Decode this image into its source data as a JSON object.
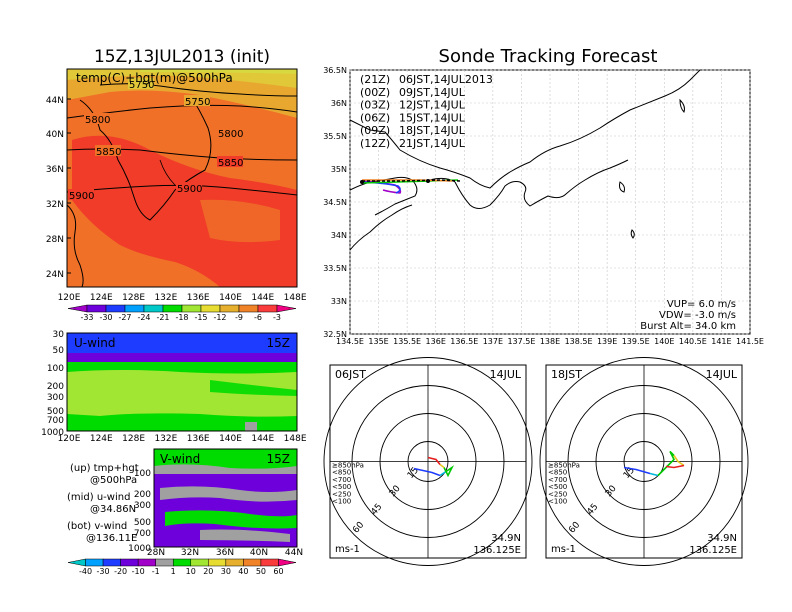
{
  "left_title": "15Z,13JUL2013 (init)",
  "right_title": "Sonde Tracking Forecast",
  "temp_map": {
    "label": "temp(C)+hgt(m)@500hPa",
    "lat_ticks": [
      "44N",
      "40N",
      "36N",
      "32N",
      "28N",
      "24N"
    ],
    "lon_ticks": [
      "120E",
      "124E",
      "128E",
      "132E",
      "136E",
      "140E",
      "144E",
      "148E"
    ],
    "contours": [
      "5750",
      "5750",
      "5800",
      "5800",
      "5850",
      "5850",
      "5900",
      "5900"
    ],
    "colorbar": {
      "labels": [
        "-33",
        "-30",
        "-27",
        "-24",
        "-21",
        "-18",
        "-15",
        "-12",
        "-9",
        "-6",
        "-3"
      ],
      "colors": [
        "#a000c8",
        "#6e00dc",
        "#1e3cff",
        "#00a0ff",
        "#00c8c8",
        "#00dc00",
        "#a0e632",
        "#e6dc32",
        "#e6af2d",
        "#f08228",
        "#fa3c3c",
        "#f00082"
      ]
    }
  },
  "u_wind": {
    "label": "U-wind",
    "time": "15Z",
    "p_ticks": [
      "30",
      "50",
      "100",
      "200",
      "300",
      "500",
      "700",
      "1000"
    ],
    "lon_ticks": [
      "120E",
      "124E",
      "128E",
      "132E",
      "136E",
      "140E",
      "144E",
      "148E"
    ]
  },
  "v_wind": {
    "label": "V-wind",
    "time": "15Z",
    "p_ticks": [
      "100",
      "200",
      "300",
      "500",
      "700",
      "1000"
    ],
    "lat_ticks": [
      "28N",
      "32N",
      "36N",
      "40N",
      "44N"
    ]
  },
  "side_notes": [
    {
      "line1": "(up) tmp+hgt",
      "line2": "@500hPa"
    },
    {
      "line1": "(mid) u-wind",
      "line2": "@34.86N"
    },
    {
      "line1": "(bot) v-wind",
      "line2": "@136.11E"
    }
  ],
  "wind_colorbar": {
    "labels": [
      "-40",
      "-30",
      "-20",
      "-10",
      "-1",
      "1",
      "10",
      "20",
      "30",
      "40",
      "50",
      "60"
    ],
    "colors": [
      "#00c8c8",
      "#00a0ff",
      "#1e3cff",
      "#6e00dc",
      "#a000c8",
      "#a0a0a0",
      "#00dc00",
      "#a0e632",
      "#e6dc32",
      "#e6af2d",
      "#f08228",
      "#fa3c3c",
      "#f00082"
    ]
  },
  "track_map": {
    "lat_ticks": [
      "36.5N",
      "36N",
      "35.5N",
      "35N",
      "34.5N",
      "34N",
      "33.5N",
      "33N",
      "32.5N"
    ],
    "lon_ticks": [
      "134.5E",
      "135E",
      "135.5E",
      "136E",
      "136.5E",
      "137E",
      "137.5E",
      "138E",
      "138.5E",
      "139E",
      "139.5E",
      "140E",
      "140.5E",
      "141E",
      "141.5E"
    ],
    "legend": [
      {
        "zone": "(21Z)",
        "time": "06JST,14JUL2013",
        "color": "#000000"
      },
      {
        "zone": "(00Z)",
        "time": "09JST,14JUL",
        "color": "#a000c8"
      },
      {
        "zone": "(03Z)",
        "time": "12JST,14JUL",
        "color": "#1e3cff"
      },
      {
        "zone": "(06Z)",
        "time": "15JST,14JUL",
        "color": "#00c800"
      },
      {
        "zone": "(09Z)",
        "time": "18JST,14JUL",
        "color": "#e6c81e"
      },
      {
        "zone": "(12Z)",
        "time": "21JST,14JUL",
        "color": "#f08228"
      }
    ],
    "params": [
      "VUP=  6.0  m/s",
      "VDW= -3.0  m/s",
      "Burst Alt= 34.0  km"
    ]
  },
  "hodographs": [
    {
      "time": "06JST",
      "date": "14JUL",
      "lat": "34.9N",
      "lon": "136.125E",
      "unit": "ms-1",
      "ring_labels": [
        "15",
        "30",
        "45",
        "60"
      ]
    },
    {
      "time": "18JST",
      "date": "14JUL",
      "lat": "34.9N",
      "lon": "136.125E",
      "unit": "ms-1",
      "ring_labels": [
        "15",
        "30",
        "45",
        "60"
      ]
    }
  ],
  "hodo_legend": [
    {
      "text": "≥850hPa",
      "color": "#e61e1e"
    },
    {
      "text": "<850",
      "color": "#f08228"
    },
    {
      "text": "<700",
      "color": "#e6c81e"
    },
    {
      "text": "<500",
      "color": "#00c800"
    },
    {
      "text": "<250",
      "color": "#00b4dc"
    },
    {
      "text": "<100",
      "color": "#1e3cff"
    }
  ]
}
